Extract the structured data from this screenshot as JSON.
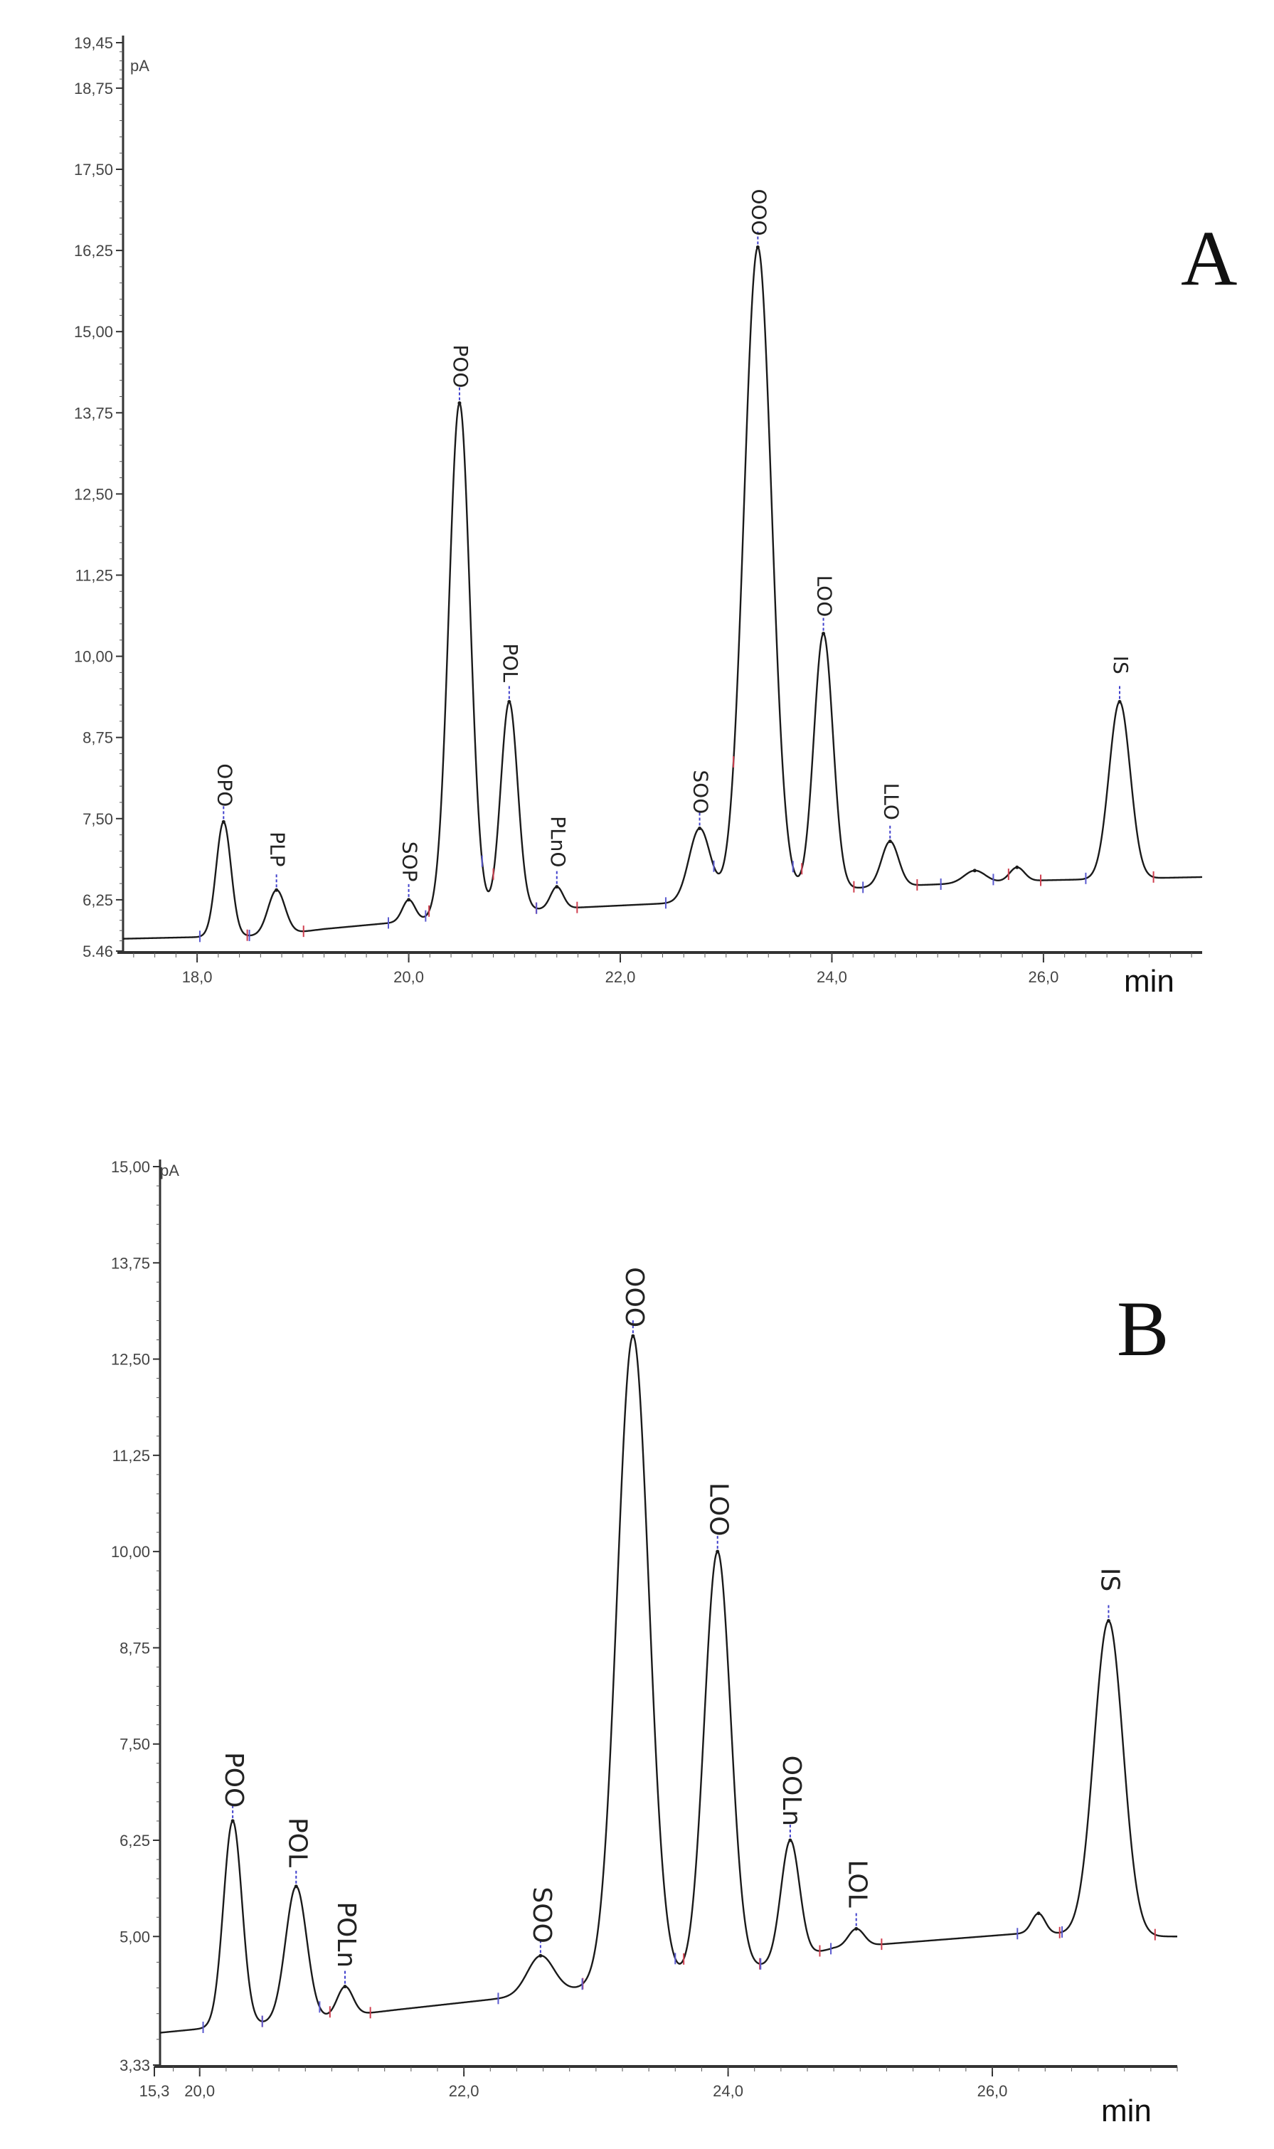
{
  "chart_data": [
    {
      "type": "line",
      "title": "A",
      "ylabel": "pA",
      "xlabel": "min",
      "xlim": [
        17.3,
        27.5
      ],
      "ylim": [
        5.46,
        19.45
      ],
      "y_ticks": [
        "5.46",
        "6,25",
        "7,50",
        "8,75",
        "10,00",
        "11,25",
        "12,50",
        "13,75",
        "15,00",
        "16,25",
        "17,50",
        "18,75",
        "19,45"
      ],
      "x_ticks": [
        "18,0",
        "20,0",
        "22,0",
        "24,0",
        "26,0"
      ],
      "baseline": [
        {
          "x": 17.3,
          "y": 5.65
        },
        {
          "x": 18.7,
          "y": 5.7
        },
        {
          "x": 19.2,
          "y": 5.8
        },
        {
          "x": 20.2,
          "y": 5.95
        },
        {
          "x": 21.2,
          "y": 6.1
        },
        {
          "x": 22.5,
          "y": 6.2
        },
        {
          "x": 23.6,
          "y": 6.35
        },
        {
          "x": 24.4,
          "y": 6.45
        },
        {
          "x": 26.0,
          "y": 6.55
        },
        {
          "x": 27.5,
          "y": 6.6
        }
      ],
      "series": [
        {
          "label": "OPO",
          "rt": 18.25,
          "height": 7.45,
          "sigma": 0.07
        },
        {
          "label": "PLP",
          "rt": 18.75,
          "height": 6.4,
          "sigma": 0.08
        },
        {
          "label": "SOP",
          "rt": 20.0,
          "height": 6.25,
          "sigma": 0.06
        },
        {
          "label": "POO",
          "rt": 20.48,
          "height": 13.9,
          "sigma": 0.1
        },
        {
          "label": "POL",
          "rt": 20.95,
          "height": 9.3,
          "sigma": 0.08
        },
        {
          "label": "PLnO",
          "rt": 21.4,
          "height": 6.45,
          "sigma": 0.06
        },
        {
          "label": "SOO",
          "rt": 22.75,
          "height": 7.35,
          "sigma": 0.1
        },
        {
          "label": "OOO",
          "rt": 23.3,
          "height": 16.3,
          "sigma": 0.13
        },
        {
          "label": "LOO",
          "rt": 23.92,
          "height": 10.35,
          "sigma": 0.09
        },
        {
          "label": "LLO",
          "rt": 24.55,
          "height": 7.15,
          "sigma": 0.08
        },
        {
          "label": "",
          "rt": 25.35,
          "height": 6.7,
          "sigma": 0.1
        },
        {
          "label": "",
          "rt": 25.75,
          "height": 6.75,
          "sigma": 0.07
        },
        {
          "label": "IS",
          "rt": 26.72,
          "height": 9.3,
          "sigma": 0.1
        }
      ]
    },
    {
      "type": "line",
      "title": "B",
      "ylabel": "pA",
      "xlabel": "min",
      "xlim": [
        19.7,
        27.4
      ],
      "ylim": [
        3.33,
        15.0
      ],
      "y_ticks": [
        "3,33",
        "5,00",
        "6,25",
        "7,50",
        "8,75",
        "10,00",
        "11,25",
        "12,50",
        "13,75",
        "15,00"
      ],
      "x_ticks": [
        "15,3",
        "20,0",
        "22,0",
        "24,0",
        "26,0"
      ],
      "baseline": [
        {
          "x": 19.7,
          "y": 3.75
        },
        {
          "x": 20.0,
          "y": 3.8
        },
        {
          "x": 21.0,
          "y": 3.95
        },
        {
          "x": 21.5,
          "y": 4.05
        },
        {
          "x": 22.3,
          "y": 4.2
        },
        {
          "x": 23.0,
          "y": 4.35
        },
        {
          "x": 24.0,
          "y": 4.5
        },
        {
          "x": 24.8,
          "y": 4.85
        },
        {
          "x": 26.3,
          "y": 5.05
        },
        {
          "x": 27.0,
          "y": 5.0
        },
        {
          "x": 27.4,
          "y": 5.0
        }
      ],
      "series": [
        {
          "label": "POO",
          "rt": 20.25,
          "height": 6.5,
          "sigma": 0.07
        },
        {
          "label": "POL",
          "rt": 20.73,
          "height": 5.65,
          "sigma": 0.08
        },
        {
          "label": "POLn",
          "rt": 21.1,
          "height": 4.35,
          "sigma": 0.06
        },
        {
          "label": "SOO",
          "rt": 22.58,
          "height": 4.75,
          "sigma": 0.1
        },
        {
          "label": "OOO",
          "rt": 23.28,
          "height": 12.8,
          "sigma": 0.12
        },
        {
          "label": "LOO",
          "rt": 23.92,
          "height": 10.0,
          "sigma": 0.1
        },
        {
          "label": "OOLn",
          "rt": 24.47,
          "height": 6.25,
          "sigma": 0.07
        },
        {
          "label": "LOL",
          "rt": 24.97,
          "height": 5.1,
          "sigma": 0.06
        },
        {
          "label": "",
          "rt": 26.35,
          "height": 5.3,
          "sigma": 0.05
        },
        {
          "label": "IS",
          "rt": 26.88,
          "height": 9.1,
          "sigma": 0.11
        }
      ]
    }
  ]
}
